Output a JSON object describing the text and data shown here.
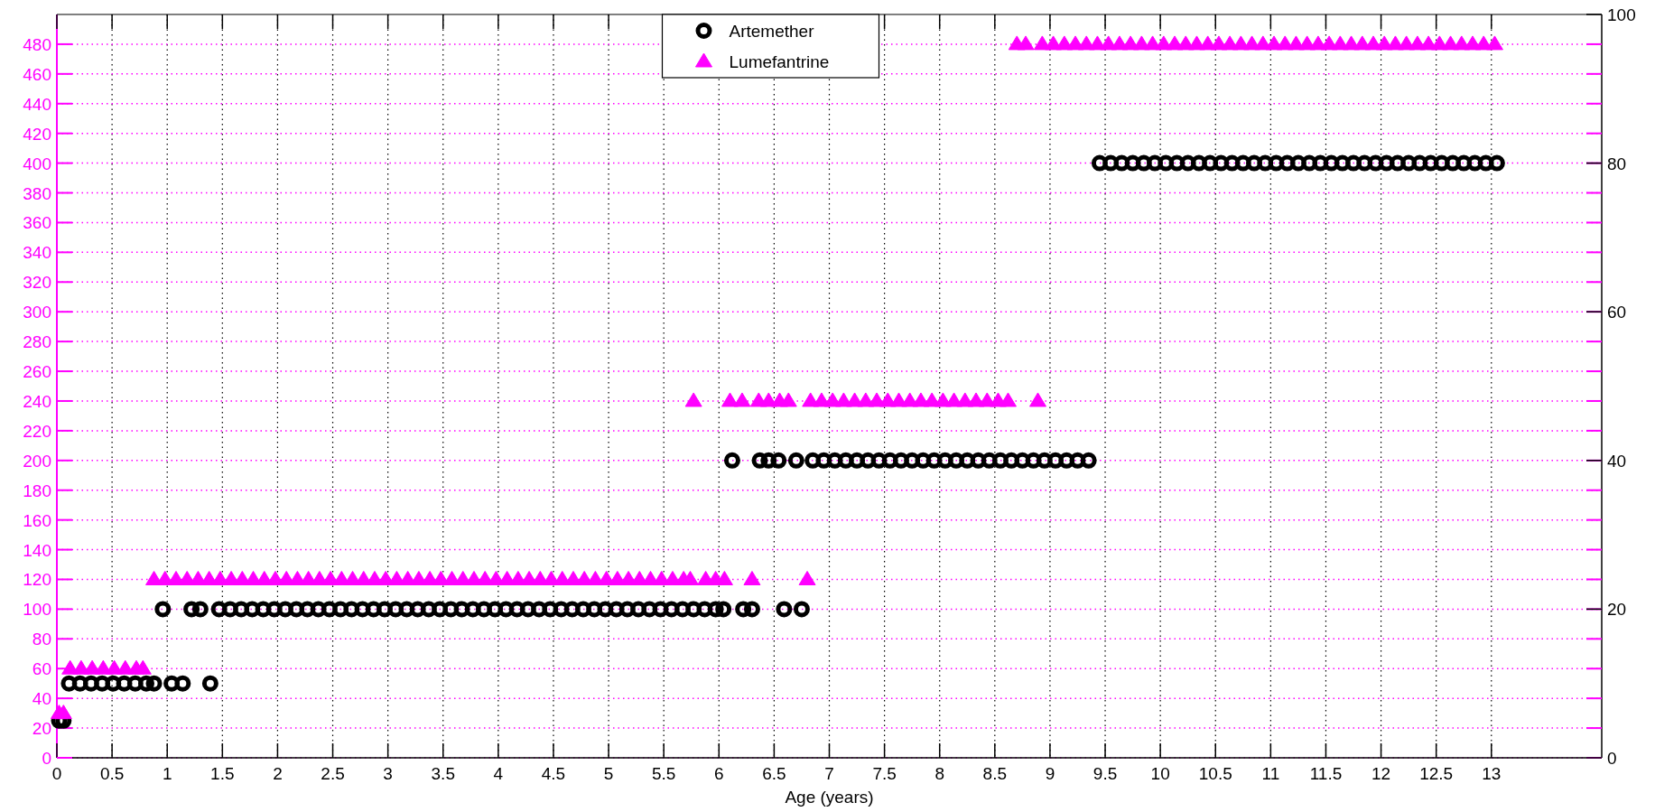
{
  "chart_data": {
    "type": "scatter",
    "xlabel": "Age (years)",
    "xlim": [
      0,
      14
    ],
    "xticks": [
      0,
      0.5,
      1,
      1.5,
      2,
      2.5,
      3,
      3.5,
      4,
      4.5,
      5,
      5.5,
      6,
      6.5,
      7,
      7.5,
      8,
      8.5,
      9,
      9.5,
      10,
      10.5,
      11,
      11.5,
      12,
      12.5,
      13
    ],
    "ylim": [
      0,
      500
    ],
    "yticks": [
      0,
      20,
      40,
      60,
      80,
      100,
      120,
      140,
      160,
      180,
      200,
      220,
      240,
      260,
      280,
      300,
      320,
      340,
      360,
      380,
      400,
      420,
      440,
      460,
      480
    ],
    "y2lim": [
      0,
      100
    ],
    "y2ticks": [
      0,
      20,
      40,
      60,
      80,
      100
    ],
    "grid": true,
    "legend": "top",
    "series": [
      {
        "name": "Artemether",
        "color": "#000000",
        "marker": "circle",
        "axis": "y2",
        "x": [
          0.02,
          0.06,
          0.11,
          0.21,
          0.31,
          0.41,
          0.51,
          0.61,
          0.71,
          0.81,
          0.88,
          1.04,
          1.14,
          1.39,
          0.96,
          1.22,
          1.3,
          1.47,
          1.57,
          1.67,
          1.77,
          1.87,
          1.97,
          2.07,
          2.17,
          2.27,
          2.37,
          2.47,
          2.57,
          2.67,
          2.77,
          2.87,
          2.97,
          3.07,
          3.17,
          3.27,
          3.37,
          3.47,
          3.57,
          3.67,
          3.77,
          3.87,
          3.97,
          4.07,
          4.17,
          4.27,
          4.37,
          4.47,
          4.57,
          4.67,
          4.77,
          4.87,
          4.97,
          5.07,
          5.17,
          5.27,
          5.37,
          5.47,
          5.57,
          5.67,
          5.77,
          5.87,
          5.97,
          6.04,
          6.22,
          6.3,
          6.59,
          6.75,
          6.12,
          6.37,
          6.45,
          6.54,
          6.7,
          6.85,
          6.95,
          7.05,
          7.15,
          7.25,
          7.35,
          7.45,
          7.55,
          7.65,
          7.75,
          7.85,
          7.95,
          8.05,
          8.15,
          8.25,
          8.35,
          8.45,
          8.55,
          8.65,
          8.75,
          8.85,
          8.95,
          9.05,
          9.15,
          9.25,
          9.35,
          9.45,
          9.55,
          9.65,
          9.75,
          9.85,
          9.95,
          10.05,
          10.15,
          10.25,
          10.35,
          10.45,
          10.55,
          10.65,
          10.75,
          10.85,
          10.95,
          11.05,
          11.15,
          11.25,
          11.35,
          11.45,
          11.55,
          11.65,
          11.75,
          11.85,
          11.95,
          12.05,
          12.15,
          12.25,
          12.35,
          12.45,
          12.55,
          12.65,
          12.75,
          12.85,
          12.95,
          13.05
        ],
        "values": [
          5,
          5,
          10,
          10,
          10,
          10,
          10,
          10,
          10,
          10,
          10,
          10,
          10,
          10,
          20,
          20,
          20,
          20,
          20,
          20,
          20,
          20,
          20,
          20,
          20,
          20,
          20,
          20,
          20,
          20,
          20,
          20,
          20,
          20,
          20,
          20,
          20,
          20,
          20,
          20,
          20,
          20,
          20,
          20,
          20,
          20,
          20,
          20,
          20,
          20,
          20,
          20,
          20,
          20,
          20,
          20,
          20,
          20,
          20,
          20,
          20,
          20,
          20,
          20,
          20,
          20,
          20,
          20,
          40,
          40,
          40,
          40,
          40,
          40,
          40,
          40,
          40,
          40,
          40,
          40,
          40,
          40,
          40,
          40,
          40,
          40,
          40,
          40,
          40,
          40,
          40,
          40,
          40,
          40,
          40,
          40,
          40,
          40,
          40,
          80,
          80,
          80,
          80,
          80,
          80,
          80,
          80,
          80,
          80,
          80,
          80,
          80,
          80,
          80,
          80,
          80,
          80,
          80,
          80,
          80,
          80,
          80,
          80,
          80,
          80,
          80,
          80,
          80,
          80,
          80,
          80,
          80,
          80,
          80,
          80,
          80
        ]
      },
      {
        "name": "Lumefantrine",
        "color": "#ff00ff",
        "marker": "triangle",
        "x": [
          0.02,
          0.06,
          0.12,
          0.22,
          0.32,
          0.42,
          0.52,
          0.62,
          0.72,
          0.78,
          0.88,
          0.98,
          1.08,
          1.18,
          1.28,
          1.38,
          1.48,
          1.58,
          1.68,
          1.78,
          1.88,
          1.98,
          2.08,
          2.18,
          2.28,
          2.38,
          2.48,
          2.58,
          2.68,
          2.78,
          2.88,
          2.98,
          3.08,
          3.18,
          3.28,
          3.38,
          3.48,
          3.58,
          3.68,
          3.78,
          3.88,
          3.98,
          4.08,
          4.18,
          4.28,
          4.38,
          4.48,
          4.58,
          4.68,
          4.78,
          4.88,
          4.98,
          5.08,
          5.18,
          5.28,
          5.38,
          5.48,
          5.58,
          5.68,
          5.74,
          5.88,
          5.97,
          6.05,
          6.3,
          6.8,
          5.77,
          6.1,
          6.21,
          6.36,
          6.45,
          6.55,
          6.63,
          6.83,
          6.93,
          7.03,
          7.13,
          7.23,
          7.33,
          7.43,
          7.53,
          7.63,
          7.73,
          7.83,
          7.93,
          8.03,
          8.13,
          8.23,
          8.33,
          8.43,
          8.53,
          8.89,
          8.62,
          8.7,
          8.78,
          8.93,
          9.03,
          9.13,
          9.23,
          9.33,
          9.43,
          9.53,
          9.63,
          9.73,
          9.83,
          9.93,
          10.03,
          10.13,
          10.23,
          10.33,
          10.43,
          10.53,
          10.63,
          10.73,
          10.83,
          10.93,
          11.03,
          11.13,
          11.23,
          11.33,
          11.43,
          11.53,
          11.63,
          11.73,
          11.83,
          11.93,
          12.03,
          12.13,
          12.23,
          12.33,
          12.43,
          12.53,
          12.63,
          12.73,
          12.83,
          12.93,
          13.03
        ],
        "values": [
          30,
          30,
          60,
          60,
          60,
          60,
          60,
          60,
          60,
          60,
          120,
          120,
          120,
          120,
          120,
          120,
          120,
          120,
          120,
          120,
          120,
          120,
          120,
          120,
          120,
          120,
          120,
          120,
          120,
          120,
          120,
          120,
          120,
          120,
          120,
          120,
          120,
          120,
          120,
          120,
          120,
          120,
          120,
          120,
          120,
          120,
          120,
          120,
          120,
          120,
          120,
          120,
          120,
          120,
          120,
          120,
          120,
          120,
          120,
          120,
          120,
          120,
          120,
          120,
          120,
          240,
          240,
          240,
          240,
          240,
          240,
          240,
          240,
          240,
          240,
          240,
          240,
          240,
          240,
          240,
          240,
          240,
          240,
          240,
          240,
          240,
          240,
          240,
          240,
          240,
          240,
          240,
          480,
          480,
          480,
          480,
          480,
          480,
          480,
          480,
          480,
          480,
          480,
          480,
          480,
          480,
          480,
          480,
          480,
          480,
          480,
          480,
          480,
          480,
          480,
          480,
          480,
          480,
          480,
          480,
          480,
          480,
          480,
          480,
          480,
          480,
          480,
          480,
          480,
          480,
          480,
          480,
          480,
          480,
          480,
          480
        ]
      }
    ]
  }
}
